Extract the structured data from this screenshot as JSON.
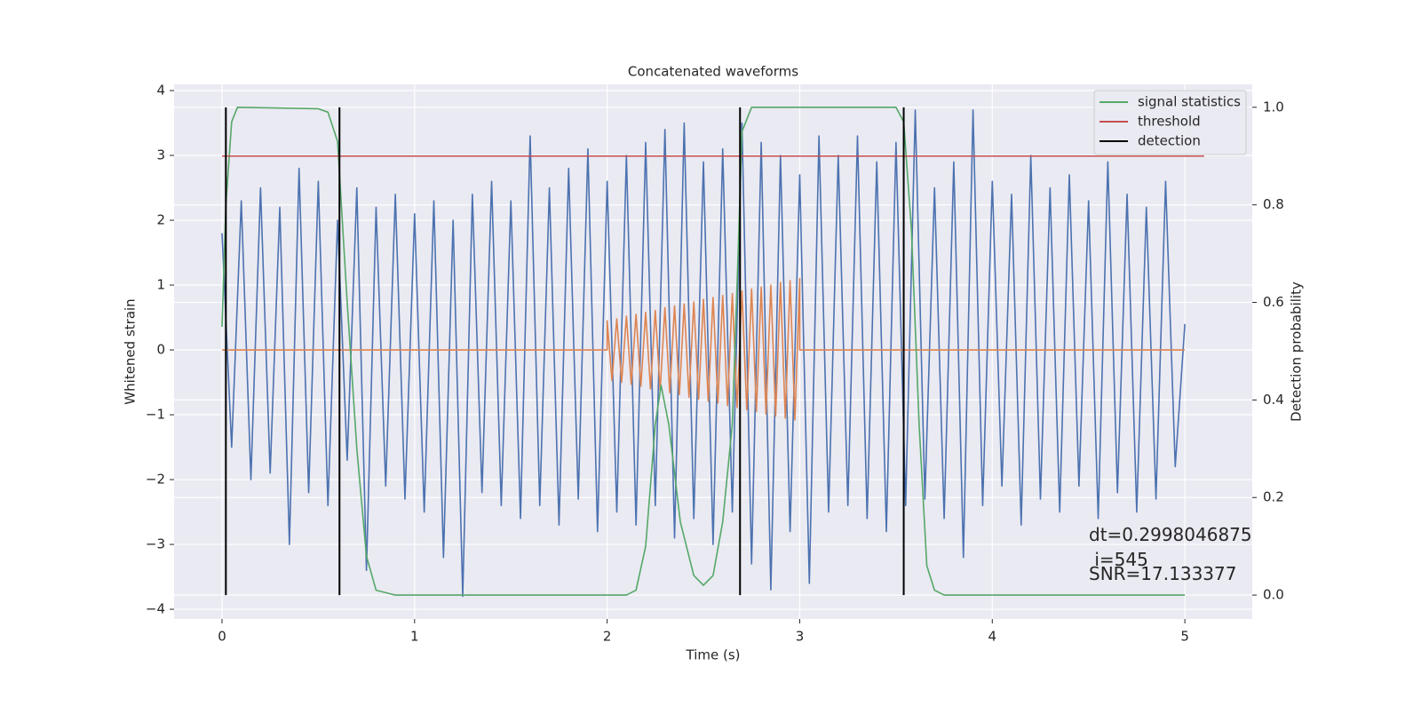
{
  "chart_data": {
    "type": "line",
    "title": "Concatenated waveforms",
    "x_label": "Time (s)",
    "y_label": "Whitened strain",
    "y2_label": "Detection probability",
    "annotations": [
      "dt=0.2998046875",
      " i=545",
      "SNR=17.133377"
    ],
    "xlim": [
      -0.249,
      5.35
    ],
    "ylim": [
      -4.15,
      4.096
    ],
    "y2lim": [
      -0.049,
      1.047
    ],
    "xticks": [
      0,
      1,
      2,
      3,
      4,
      5
    ],
    "yticks": [
      {
        "value": -4,
        "label": "−4"
      },
      {
        "value": -3,
        "label": "−3"
      },
      {
        "value": -2,
        "label": "−2"
      },
      {
        "value": -1,
        "label": "−1"
      },
      0,
      1,
      2,
      3,
      4
    ],
    "y2ticks": [
      {
        "value": 0,
        "label": "0.0"
      },
      0.2,
      0.4,
      0.6,
      0.8,
      {
        "value": 1,
        "label": "1.0"
      }
    ],
    "grid": true,
    "legend": "upper right",
    "series": [
      {
        "kind": "line",
        "color": "#4c72b0",
        "x": [
          0,
          0.05,
          0.1,
          0.15,
          0.2,
          0.25,
          0.3,
          0.35,
          0.4,
          0.45,
          0.5,
          0.55,
          0.6,
          0.65,
          0.7,
          0.75,
          0.8,
          0.85,
          0.9,
          0.95,
          1,
          1.05,
          1.1,
          1.15,
          1.2,
          1.25,
          1.3,
          1.35,
          1.4,
          1.45,
          1.5,
          1.55,
          1.6,
          1.65,
          1.7,
          1.75,
          1.8,
          1.85,
          1.9,
          1.95,
          2,
          2.05,
          2.1,
          2.15,
          2.2,
          2.25,
          2.3,
          2.35,
          2.4,
          2.45,
          2.5,
          2.55,
          2.6,
          2.65,
          2.7,
          2.75,
          2.8,
          2.85,
          2.9,
          2.95,
          3,
          3.05,
          3.1,
          3.15,
          3.2,
          3.25,
          3.3,
          3.35,
          3.4,
          3.45,
          3.5,
          3.55,
          3.6,
          3.65,
          3.7,
          3.75,
          3.8,
          3.85,
          3.9,
          3.95,
          4,
          4.05,
          4.1,
          4.15,
          4.2,
          4.25,
          4.3,
          4.35,
          4.4,
          4.45,
          4.5,
          4.55,
          4.6,
          4.65,
          4.7,
          4.75,
          4.8,
          4.85,
          4.9,
          4.95,
          5
        ],
        "values": [
          1.8,
          -1.5,
          2.3,
          -2.0,
          2.5,
          -1.9,
          2.2,
          -3.0,
          2.8,
          -2.2,
          2.6,
          -2.4,
          2.0,
          -1.7,
          2.5,
          -3.4,
          2.2,
          -2.1,
          2.4,
          -2.3,
          2.1,
          -2.5,
          2.3,
          -3.2,
          2.0,
          -3.8,
          2.4,
          -2.2,
          2.6,
          -2.4,
          2.3,
          -2.6,
          3.3,
          -2.4,
          2.5,
          -2.7,
          2.8,
          -2.3,
          3.1,
          -2.8,
          2.6,
          -2.5,
          3.0,
          -2.7,
          3.2,
          -2.4,
          3.4,
          -2.9,
          3.5,
          -2.6,
          2.9,
          -3.0,
          3.1,
          -2.5,
          3.5,
          -3.3,
          3.2,
          -3.7,
          3.0,
          -2.8,
          2.7,
          -3.6,
          3.3,
          -2.5,
          3.0,
          -2.4,
          3.3,
          -2.6,
          2.9,
          -2.8,
          3.2,
          -2.4,
          3.7,
          -2.3,
          2.5,
          -2.6,
          2.9,
          -3.2,
          3.7,
          -2.4,
          2.6,
          -2.1,
          2.4,
          -2.7,
          3.0,
          -2.3,
          2.5,
          -2.5,
          2.7,
          -2.1,
          2.3,
          -2.6,
          2.9,
          -2.2,
          2.4,
          -2.5,
          2.2,
          -2.3,
          2.6,
          -1.8,
          0.4
        ]
      },
      {
        "kind": "line",
        "color": "#dd8452",
        "x": [
          0,
          2,
          2,
          2.025,
          2.05,
          2.075,
          2.1,
          2.125,
          2.15,
          2.175,
          2.2,
          2.225,
          2.25,
          2.275,
          2.3,
          2.325,
          2.35,
          2.375,
          2.4,
          2.425,
          2.45,
          2.475,
          2.5,
          2.525,
          2.55,
          2.575,
          2.6,
          2.625,
          2.65,
          2.675,
          2.7,
          2.725,
          2.75,
          2.775,
          2.8,
          2.825,
          2.85,
          2.875,
          2.9,
          2.925,
          2.95,
          2.975,
          3,
          3,
          5
        ],
        "values": [
          0,
          0,
          0.45,
          -0.47,
          0.48,
          -0.5,
          0.52,
          -0.53,
          0.55,
          -0.56,
          0.58,
          -0.6,
          0.61,
          -0.63,
          0.65,
          -0.66,
          0.68,
          -0.69,
          0.71,
          -0.73,
          0.74,
          -0.76,
          0.78,
          -0.79,
          0.81,
          -0.82,
          0.84,
          -0.86,
          0.87,
          -0.89,
          0.91,
          -0.92,
          0.94,
          -0.95,
          0.97,
          -0.99,
          1.0,
          -1.02,
          1.04,
          -1.05,
          1.07,
          -1.08,
          1.1,
          0,
          0
        ]
      },
      {
        "kind": "line",
        "name": "signal statistics",
        "color": "#55a868",
        "axis": "y2",
        "x": [
          0,
          0.02,
          0.05,
          0.08,
          0.5,
          0.55,
          0.6,
          0.65,
          0.7,
          0.75,
          0.8,
          0.9,
          2.1,
          2.15,
          2.2,
          2.25,
          2.28,
          2.32,
          2.38,
          2.45,
          2.5,
          2.55,
          2.6,
          2.65,
          2.68,
          2.7,
          2.75,
          3.5,
          3.54,
          3.58,
          3.62,
          3.66,
          3.7,
          3.75,
          5
        ],
        "values": [
          0.55,
          0.8,
          0.97,
          1.0,
          0.997,
          0.99,
          0.93,
          0.6,
          0.3,
          0.08,
          0.01,
          0.0,
          0.0,
          0.01,
          0.1,
          0.35,
          0.43,
          0.35,
          0.15,
          0.04,
          0.02,
          0.04,
          0.15,
          0.35,
          0.7,
          0.95,
          1.0,
          1.0,
          0.97,
          0.75,
          0.35,
          0.06,
          0.01,
          0.0,
          0.0
        ]
      },
      {
        "kind": "line",
        "name": "threshold",
        "color": "#c44e52",
        "axis": "y2",
        "x": [
          0,
          5.1
        ],
        "values": [
          0.9,
          0.9
        ]
      },
      {
        "kind": "vline",
        "name": "detection",
        "color": "#000000",
        "axis": "y2",
        "x": [
          0.02,
          0.61,
          2.69,
          3.54
        ]
      }
    ]
  }
}
